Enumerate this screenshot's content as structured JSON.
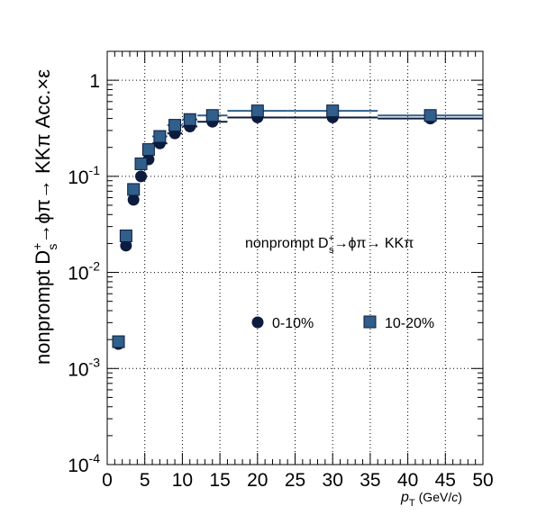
{
  "chart_data": {
    "type": "scatter",
    "x_axis": {
      "range": [
        0,
        50
      ],
      "scale": "linear",
      "tick_labels": [
        "0",
        "5",
        "10",
        "15",
        "20",
        "25",
        "30",
        "35",
        "40",
        "45",
        "50"
      ],
      "label_main": "p",
      "label_sub": "T",
      "label_unit": "(GeV/",
      "label_unit_c": "c",
      "label_close": ")"
    },
    "y_axis": {
      "range": [
        0.0001,
        2
      ],
      "scale": "log",
      "tick_labels": [
        {
          "base": "10",
          "exp": "-4",
          "value": 0.0001
        },
        {
          "base": "10",
          "exp": "-3",
          "value": 0.001
        },
        {
          "base": "10",
          "exp": "-2",
          "value": 0.01
        },
        {
          "base": "10",
          "exp": "-1",
          "value": 0.1
        },
        {
          "base": "1",
          "exp": "",
          "value": 1
        }
      ],
      "label_pre": "nonprompt D",
      "label_sup": "+",
      "label_sub": "s",
      "label_post": "→ϕπ→ KKπ Acc.×ε"
    },
    "grid": true,
    "annotation": {
      "pre": "nonprompt D",
      "sup": "+",
      "sub": "s",
      "post": "→ϕπ→ KKπ"
    },
    "legend_placement": "center-right",
    "series": [
      {
        "name": "0-10%",
        "marker": "circle",
        "color": "#0d1b3e",
        "points": [
          {
            "x": 1.5,
            "xlo": 1,
            "xhi": 2,
            "y": 0.0018
          },
          {
            "x": 2.5,
            "xlo": 2,
            "xhi": 3,
            "y": 0.019
          },
          {
            "x": 3.5,
            "xlo": 3,
            "xhi": 4,
            "y": 0.057
          },
          {
            "x": 4.5,
            "xlo": 4,
            "xhi": 5,
            "y": 0.1
          },
          {
            "x": 5.5,
            "xlo": 5,
            "xhi": 6,
            "y": 0.15
          },
          {
            "x": 7.0,
            "xlo": 6,
            "xhi": 8,
            "y": 0.22
          },
          {
            "x": 9.0,
            "xlo": 8,
            "xhi": 10,
            "y": 0.28
          },
          {
            "x": 11.0,
            "xlo": 10,
            "xhi": 12,
            "y": 0.33
          },
          {
            "x": 14.0,
            "xlo": 12,
            "xhi": 16,
            "y": 0.37
          },
          {
            "x": 20.0,
            "xlo": 16,
            "xhi": 24,
            "y": 0.41
          },
          {
            "x": 30.0,
            "xlo": 24,
            "xhi": 36,
            "y": 0.41
          },
          {
            "x": 43.0,
            "xlo": 36,
            "xhi": 50,
            "y": 0.4
          }
        ]
      },
      {
        "name": "10-20%",
        "marker": "square",
        "color": "#2f5f8a",
        "points": [
          {
            "x": 1.5,
            "xlo": 1,
            "xhi": 2,
            "y": 0.0019
          },
          {
            "x": 2.5,
            "xlo": 2,
            "xhi": 3,
            "y": 0.024
          },
          {
            "x": 3.5,
            "xlo": 3,
            "xhi": 4,
            "y": 0.073
          },
          {
            "x": 4.5,
            "xlo": 4,
            "xhi": 5,
            "y": 0.135
          },
          {
            "x": 5.5,
            "xlo": 5,
            "xhi": 6,
            "y": 0.19
          },
          {
            "x": 7.0,
            "xlo": 6,
            "xhi": 8,
            "y": 0.26
          },
          {
            "x": 9.0,
            "xlo": 8,
            "xhi": 10,
            "y": 0.34
          },
          {
            "x": 11.0,
            "xlo": 10,
            "xhi": 12,
            "y": 0.39
          },
          {
            "x": 14.0,
            "xlo": 12,
            "xhi": 16,
            "y": 0.43
          },
          {
            "x": 20.0,
            "xlo": 16,
            "xhi": 24,
            "y": 0.48
          },
          {
            "x": 30.0,
            "xlo": 24,
            "xhi": 36,
            "y": 0.48
          },
          {
            "x": 43.0,
            "xlo": 36,
            "xhi": 50,
            "y": 0.43
          }
        ]
      }
    ]
  }
}
